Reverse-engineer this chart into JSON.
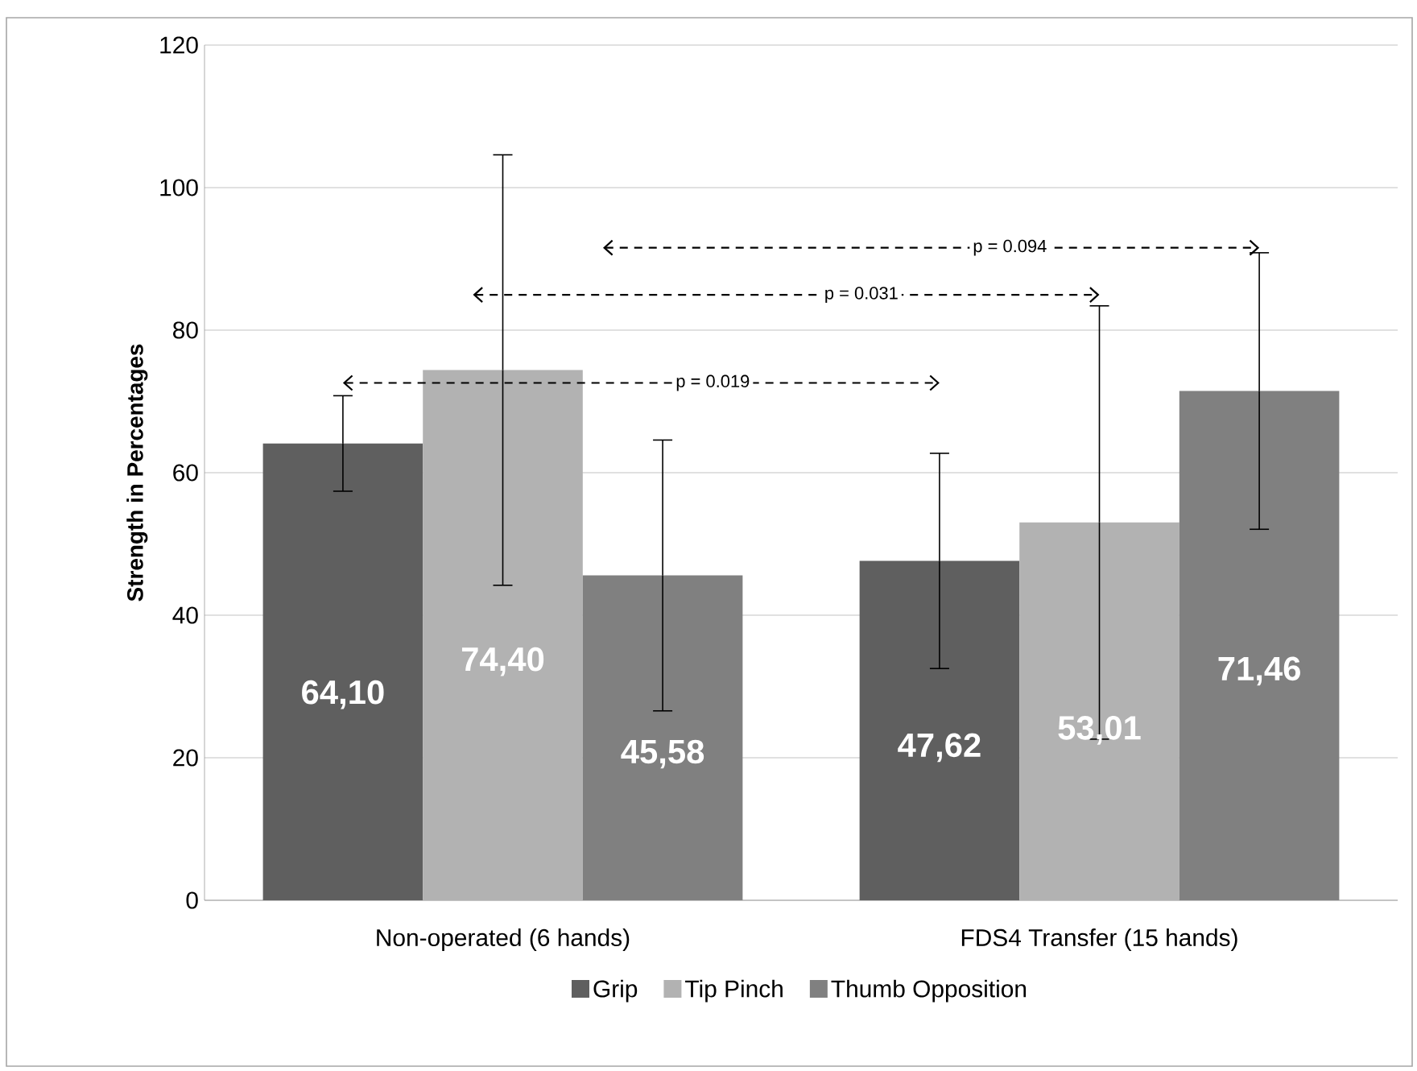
{
  "chart_data": {
    "type": "bar",
    "ylabel": "Strength in Percentages",
    "categories": [
      "Non-operated (6 hands)",
      "FDS4 Transfer (15 hands)"
    ],
    "series": [
      {
        "name": "Grip",
        "color": "#5f5f5f",
        "values": [
          64.1,
          47.62
        ],
        "value_labels": [
          "64,10",
          "47,62"
        ],
        "errors": [
          6.7,
          15.1
        ]
      },
      {
        "name": "Tip Pinch",
        "color": "#b2b2b2",
        "values": [
          74.4,
          53.01
        ],
        "value_labels": [
          "74,40",
          "53,01"
        ],
        "errors": [
          30.2,
          30.4
        ]
      },
      {
        "name": "Thumb Opposition",
        "color": "#808080",
        "values": [
          45.58,
          71.46
        ],
        "value_labels": [
          "45,58",
          "71,46"
        ],
        "errors": [
          19.0,
          19.4
        ]
      }
    ],
    "ylim": [
      0,
      120
    ],
    "yticks": [
      0,
      20,
      40,
      60,
      80,
      100,
      120
    ],
    "grid": "y",
    "legend": "bottom",
    "annotations": [
      "p = 0.019",
      "p = 0.031",
      "p = 0.094"
    ]
  }
}
